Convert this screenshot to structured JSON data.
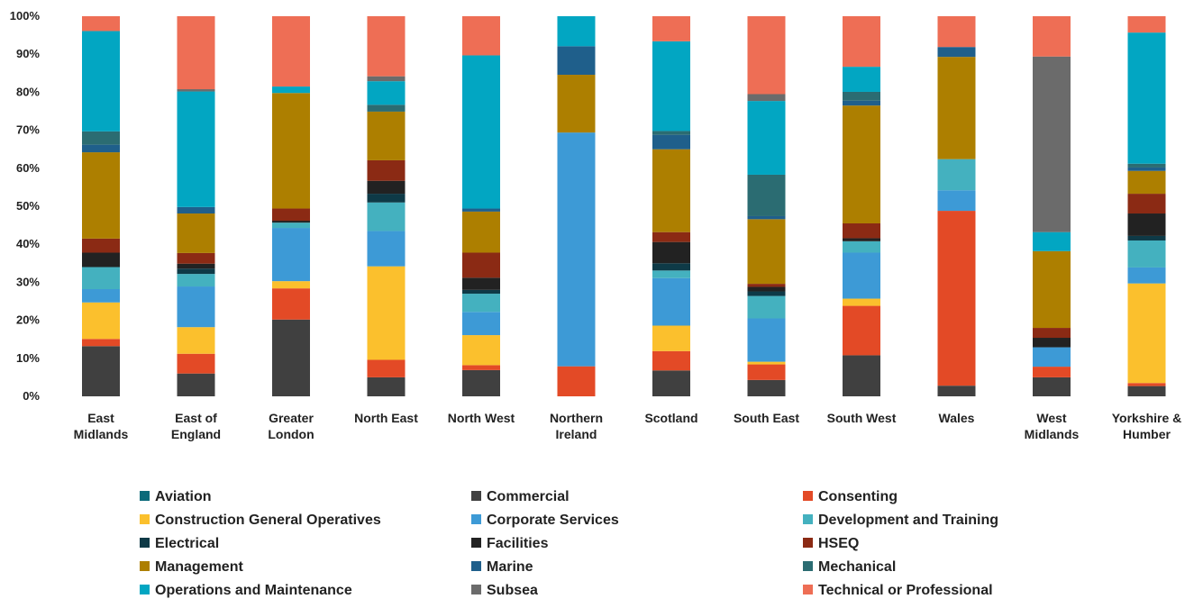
{
  "chart_data": {
    "type": "bar",
    "stacked": true,
    "normalized": true,
    "ylim": [
      0,
      100
    ],
    "yticks": [
      "0%",
      "10%",
      "20%",
      "30%",
      "40%",
      "50%",
      "60%",
      "70%",
      "80%",
      "90%",
      "100%"
    ],
    "grid": false,
    "legend_position": "bottom",
    "legend_columns": 3,
    "categories": [
      [
        "East",
        "Midlands"
      ],
      [
        "East of",
        "England"
      ],
      [
        "Greater",
        "London"
      ],
      [
        "North East"
      ],
      [
        "North West"
      ],
      [
        "Northern",
        "Ireland"
      ],
      [
        "Scotland"
      ],
      [
        "South East"
      ],
      [
        "South West"
      ],
      [
        "Wales"
      ],
      [
        "West",
        "Midlands"
      ],
      [
        "Yorkshire &",
        "Humber"
      ]
    ],
    "series": [
      {
        "name": "Commercial",
        "color": "#404040",
        "values": [
          13.2,
          6.0,
          20.2,
          5.0,
          6.9,
          0.0,
          6.8,
          4.3,
          10.8,
          2.8,
          5.0,
          2.7
        ]
      },
      {
        "name": "Consenting",
        "color": "#e34a26",
        "values": [
          1.9,
          5.2,
          8.2,
          4.6,
          1.3,
          7.9,
          5.1,
          4.1,
          13.0,
          46.0,
          2.8,
          0.8
        ]
      },
      {
        "name": "Construction General Operatives",
        "color": "#fbc02d",
        "values": [
          9.6,
          7.0,
          1.9,
          24.6,
          7.9,
          0.0,
          6.7,
          0.7,
          1.9,
          0.0,
          0.0,
          26.2
        ]
      },
      {
        "name": "Corporate Services",
        "color": "#3d9ad6",
        "values": [
          3.5,
          10.7,
          14.0,
          9.3,
          6.1,
          61.5,
          12.5,
          11.4,
          12.1,
          5.4,
          5.1,
          4.2
        ]
      },
      {
        "name": "Development and Training",
        "color": "#44b1bf",
        "values": [
          5.8,
          3.3,
          1.4,
          7.5,
          4.8,
          0.0,
          2.0,
          5.9,
          3.0,
          8.2,
          0.0,
          7.1
        ]
      },
      {
        "name": "Electrical",
        "color": "#0e3a47",
        "values": [
          0.0,
          1.4,
          0.0,
          2.3,
          1.0,
          0.0,
          1.9,
          1.2,
          0.0,
          0.0,
          0.0,
          1.2
        ]
      },
      {
        "name": "Facilities",
        "color": "#222222",
        "values": [
          3.8,
          1.3,
          0.5,
          3.4,
          3.2,
          0.0,
          5.6,
          1.2,
          0.8,
          0.0,
          2.5,
          5.9
        ]
      },
      {
        "name": "HSEQ",
        "color": "#8b2a14",
        "values": [
          3.7,
          2.8,
          3.2,
          5.4,
          6.6,
          0.0,
          2.6,
          0.8,
          3.9,
          0.0,
          2.6,
          5.2
        ]
      },
      {
        "name": "Management",
        "color": "#ad7f00",
        "values": [
          22.7,
          10.4,
          30.4,
          12.8,
          10.8,
          15.2,
          21.8,
          17.0,
          31.0,
          26.9,
          20.2,
          6.0
        ]
      },
      {
        "name": "Marine",
        "color": "#1f5f8b",
        "values": [
          2.0,
          1.7,
          0.0,
          0.0,
          0.8,
          7.5,
          3.8,
          0.8,
          1.3,
          2.6,
          0.0,
          0.9
        ]
      },
      {
        "name": "Mechanical",
        "color": "#2b6c72",
        "values": [
          3.5,
          0.0,
          0.0,
          1.8,
          0.0,
          0.0,
          1.0,
          10.9,
          2.3,
          0.0,
          0.0,
          1.0
        ]
      },
      {
        "name": "Operations and Maintenance",
        "color": "#02a6c2",
        "values": [
          26.4,
          30.4,
          1.7,
          6.2,
          40.3,
          7.9,
          23.6,
          19.4,
          6.6,
          0.0,
          5.0,
          34.5
        ]
      },
      {
        "name": "Subsea",
        "color": "#6b6b6b",
        "values": [
          0.0,
          0.6,
          0.0,
          1.3,
          0.0,
          0.0,
          0.0,
          1.8,
          0.0,
          0.0,
          46.2,
          0.0
        ]
      },
      {
        "name": "Technical or Professional",
        "color": "#ee6e55",
        "values": [
          3.9,
          19.2,
          18.5,
          15.8,
          10.3,
          0.0,
          6.6,
          20.5,
          13.3,
          8.1,
          10.6,
          4.3
        ]
      },
      {
        "name": "Aviation",
        "color": "#0b6a7a",
        "values": [
          0,
          0,
          0,
          0,
          0,
          0,
          0,
          0,
          0,
          0,
          0,
          0
        ]
      }
    ],
    "legend_order": [
      "Aviation",
      "Commercial",
      "Consenting",
      "Construction General Operatives",
      "Corporate Services",
      "Development and Training",
      "Electrical",
      "Facilities",
      "HSEQ",
      "Management",
      "Marine",
      "Mechanical",
      "Operations and Maintenance",
      "Subsea",
      "Technical or Professional"
    ]
  }
}
